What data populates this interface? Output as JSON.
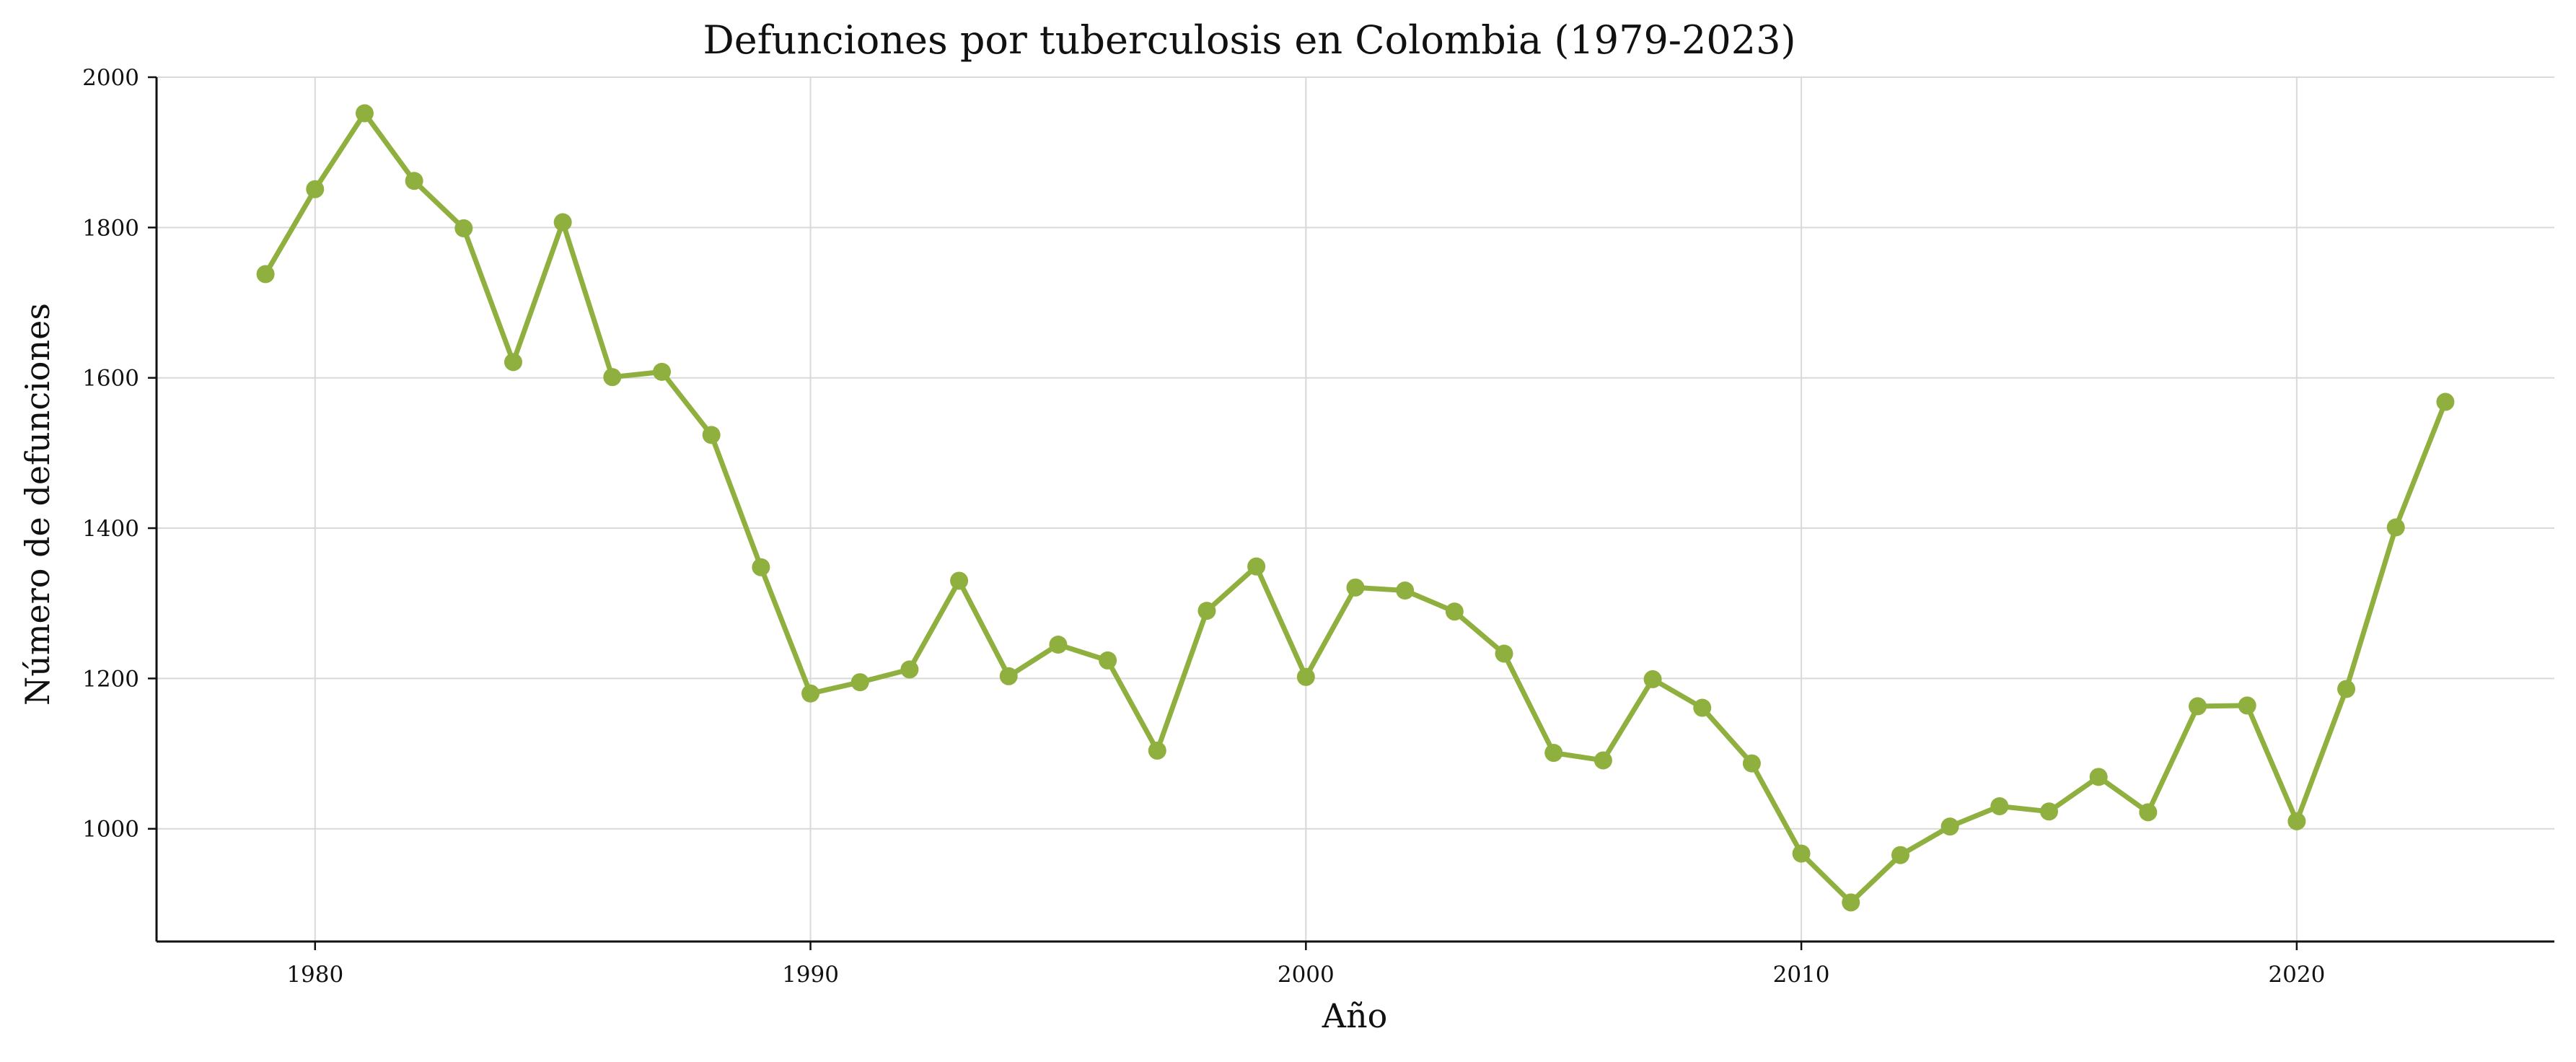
{
  "chart_data": {
    "type": "line",
    "title": "Defunciones por tuberculosis en Colombia (1979-2023)",
    "xlabel": "Año",
    "ylabel": "Número de defunciones",
    "xlim": [
      1976.8,
      2025.2
    ],
    "ylim": [
      850,
      2000
    ],
    "xticks": [
      1980,
      1990,
      2000,
      2010,
      2020
    ],
    "yticks": [
      1000,
      1200,
      1400,
      1600,
      1800,
      2000
    ],
    "grid": true,
    "legend": "none",
    "colors": {
      "series": "#8fb03e",
      "grid": "#d9d9d9",
      "axis": "#111111"
    },
    "series": [
      {
        "x": [
          1979,
          1980,
          1981,
          1982,
          1983,
          1984,
          1985,
          1986,
          1987,
          1988,
          1989,
          1990,
          1991,
          1992,
          1993,
          1994,
          1995,
          1996,
          1997,
          1998,
          1999,
          2000,
          2001,
          2002,
          2003,
          2004,
          2005,
          2006,
          2007,
          2008,
          2009,
          2010,
          2011,
          2012,
          2013,
          2014,
          2015,
          2016,
          2017,
          2018,
          2019,
          2020,
          2021,
          2022,
          2023
        ],
        "values": [
          1738,
          1851,
          1952,
          1862,
          1799,
          1621,
          1807,
          1601,
          1608,
          1524,
          1348,
          1180,
          1195,
          1212,
          1330,
          1203,
          1245,
          1224,
          1104,
          1290,
          1349,
          1202,
          1321,
          1317,
          1289,
          1233,
          1101,
          1091,
          1199,
          1161,
          1087,
          967,
          902,
          965,
          1003,
          1030,
          1023,
          1069,
          1022,
          1163,
          1164,
          1010,
          1186,
          1401,
          1568
        ]
      }
    ]
  }
}
